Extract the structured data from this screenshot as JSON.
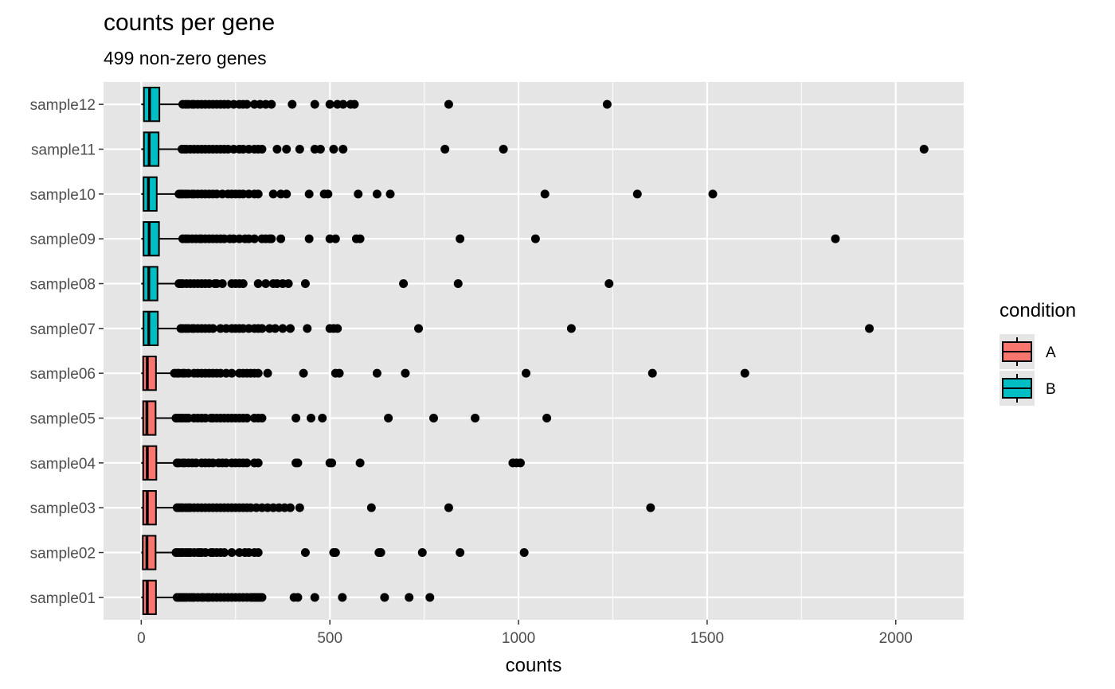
{
  "chart_data": {
    "type": "boxplot",
    "title": "counts per gene",
    "subtitle": "499 non-zero genes",
    "xlabel": "counts",
    "ylabel": "",
    "xlim": [
      -100,
      2180
    ],
    "x_ticks": [
      0,
      500,
      1000,
      1500,
      2000
    ],
    "x_tick_labels": [
      "0",
      "500",
      "1000",
      "1500",
      "2000"
    ],
    "grid": true,
    "legend": {
      "title": "condition",
      "position": "right",
      "entries": [
        {
          "label": "A",
          "color": "#F8766D"
        },
        {
          "label": "B",
          "color": "#00BFC4"
        }
      ]
    },
    "colors": {
      "A": "#F8766D",
      "B": "#00BFC4",
      "panel": "#E5E5E5",
      "grid": "#FFFFFF"
    },
    "samples": [
      {
        "name": "sample01",
        "condition": "A",
        "min": 0,
        "q1": 5,
        "median": 16,
        "q3": 39,
        "whisker_high": 90,
        "outliers": [
          95,
          100,
          105,
          110,
          115,
          120,
          128,
          135,
          140,
          150,
          160,
          165,
          175,
          180,
          190,
          200,
          210,
          220,
          230,
          240,
          250,
          260,
          270,
          280,
          290,
          295,
          300,
          305,
          310,
          315,
          320,
          405,
          415,
          460,
          533,
          645,
          710,
          765
        ]
      },
      {
        "name": "sample02",
        "condition": "A",
        "min": 0,
        "q1": 4,
        "median": 15,
        "q3": 38,
        "whisker_high": 88,
        "outliers": [
          92,
          98,
          105,
          110,
          118,
          125,
          130,
          140,
          150,
          155,
          160,
          170,
          185,
          190,
          200,
          210,
          220,
          240,
          260,
          275,
          285,
          300,
          310,
          435,
          510,
          515,
          630,
          635,
          745,
          845,
          1015
        ]
      },
      {
        "name": "sample03",
        "condition": "A",
        "min": 0,
        "q1": 5,
        "median": 16,
        "q3": 39,
        "whisker_high": 90,
        "outliers": [
          95,
          100,
          105,
          110,
          118,
          125,
          130,
          140,
          150,
          160,
          170,
          180,
          190,
          200,
          210,
          220,
          230,
          240,
          250,
          260,
          270,
          280,
          290,
          305,
          320,
          335,
          350,
          365,
          380,
          395,
          420,
          610,
          815,
          1350
        ]
      },
      {
        "name": "sample04",
        "condition": "A",
        "min": 0,
        "q1": 5,
        "median": 16,
        "q3": 40,
        "whisker_high": 92,
        "outliers": [
          95,
          100,
          110,
          115,
          125,
          135,
          145,
          160,
          170,
          180,
          190,
          205,
          215,
          225,
          240,
          250,
          260,
          270,
          280,
          300,
          310,
          410,
          415,
          500,
          505,
          580,
          985,
          995,
          1005
        ]
      },
      {
        "name": "sample05",
        "condition": "A",
        "min": 0,
        "q1": 5,
        "median": 15,
        "q3": 38,
        "whisker_high": 88,
        "outliers": [
          92,
          98,
          105,
          110,
          118,
          125,
          140,
          150,
          160,
          170,
          185,
          190,
          200,
          210,
          220,
          230,
          240,
          250,
          260,
          270,
          280,
          300,
          310,
          320,
          410,
          450,
          480,
          655,
          775,
          885,
          1075
        ]
      },
      {
        "name": "sample06",
        "condition": "A",
        "min": 0,
        "q1": 5,
        "median": 16,
        "q3": 39,
        "whisker_high": 85,
        "outliers": [
          88,
          95,
          100,
          110,
          115,
          125,
          140,
          150,
          160,
          170,
          180,
          190,
          200,
          210,
          225,
          240,
          260,
          270,
          280,
          290,
          300,
          310,
          335,
          430,
          515,
          525,
          625,
          700,
          1020,
          1355,
          1600
        ]
      },
      {
        "name": "sample07",
        "condition": "B",
        "min": 0,
        "q1": 6,
        "median": 20,
        "q3": 44,
        "whisker_high": 100,
        "outliers": [
          105,
          110,
          118,
          125,
          135,
          140,
          150,
          160,
          170,
          180,
          190,
          210,
          225,
          240,
          250,
          260,
          270,
          285,
          300,
          310,
          320,
          340,
          355,
          375,
          395,
          440,
          500,
          510,
          520,
          735,
          1140,
          1930
        ]
      },
      {
        "name": "sample08",
        "condition": "B",
        "min": 0,
        "q1": 6,
        "median": 20,
        "q3": 43,
        "whisker_high": 95,
        "outliers": [
          100,
          105,
          110,
          120,
          130,
          140,
          150,
          160,
          170,
          180,
          195,
          200,
          215,
          240,
          250,
          260,
          270,
          310,
          330,
          350,
          360,
          375,
          390,
          435,
          695,
          840,
          1240
        ]
      },
      {
        "name": "sample09",
        "condition": "B",
        "min": 0,
        "q1": 6,
        "median": 21,
        "q3": 47,
        "whisker_high": 105,
        "outliers": [
          110,
          118,
          125,
          135,
          145,
          155,
          160,
          170,
          180,
          190,
          200,
          210,
          220,
          235,
          245,
          260,
          275,
          285,
          300,
          320,
          330,
          340,
          345,
          370,
          445,
          500,
          515,
          570,
          580,
          845,
          1045,
          1840
        ]
      },
      {
        "name": "sample10",
        "condition": "B",
        "min": 0,
        "q1": 6,
        "median": 19,
        "q3": 41,
        "whisker_high": 95,
        "outliers": [
          100,
          105,
          110,
          118,
          125,
          135,
          140,
          150,
          160,
          170,
          180,
          190,
          200,
          215,
          230,
          240,
          250,
          260,
          270,
          285,
          300,
          310,
          350,
          370,
          385,
          445,
          485,
          495,
          575,
          625,
          660,
          1070,
          1315,
          1515
        ]
      },
      {
        "name": "sample11",
        "condition": "B",
        "min": 0,
        "q1": 7,
        "median": 21,
        "q3": 46,
        "whisker_high": 102,
        "outliers": [
          108,
          115,
          120,
          130,
          140,
          150,
          160,
          170,
          180,
          190,
          200,
          210,
          220,
          230,
          245,
          260,
          270,
          285,
          300,
          310,
          320,
          360,
          385,
          420,
          460,
          475,
          510,
          535,
          805,
          960,
          2075
        ]
      },
      {
        "name": "sample12",
        "condition": "B",
        "min": 0,
        "q1": 7,
        "median": 22,
        "q3": 48,
        "whisker_high": 105,
        "outliers": [
          110,
          118,
          125,
          135,
          140,
          150,
          160,
          170,
          180,
          190,
          200,
          210,
          220,
          230,
          245,
          260,
          270,
          280,
          300,
          315,
          330,
          345,
          400,
          460,
          500,
          520,
          535,
          555,
          565,
          815,
          1235
        ]
      }
    ]
  }
}
